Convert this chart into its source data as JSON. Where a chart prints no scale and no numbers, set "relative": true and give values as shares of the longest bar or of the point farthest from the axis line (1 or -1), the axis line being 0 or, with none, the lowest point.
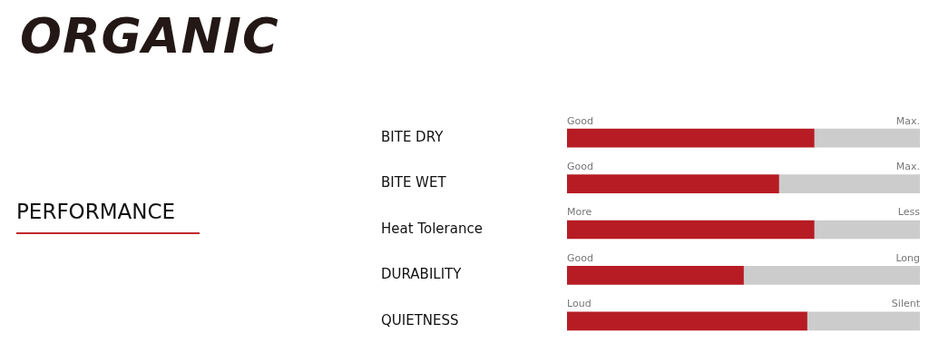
{
  "chart_data": {
    "type": "bar",
    "title": "ORGANIC",
    "subtitle": "PERFORMANCE",
    "orientation": "horizontal",
    "stacked": true,
    "relative": true,
    "legend": false,
    "categories": [
      "BITE DRY",
      "BITE WET",
      "Heat Tolerance",
      "DURABILITY",
      "QUIETNESS"
    ],
    "series": [
      {
        "color": "#b71c24",
        "values": [
          0.7,
          0.6,
          0.7,
          0.5,
          0.68
        ]
      },
      {
        "color": "#cccccc",
        "values": [
          0.3,
          0.4,
          0.3,
          0.5,
          0.32
        ]
      }
    ],
    "annotations": [
      "Good",
      "Max.",
      "Good",
      "Max.",
      "More",
      "Less",
      "Good",
      "Long",
      "Loud",
      "Silent"
    ]
  }
}
